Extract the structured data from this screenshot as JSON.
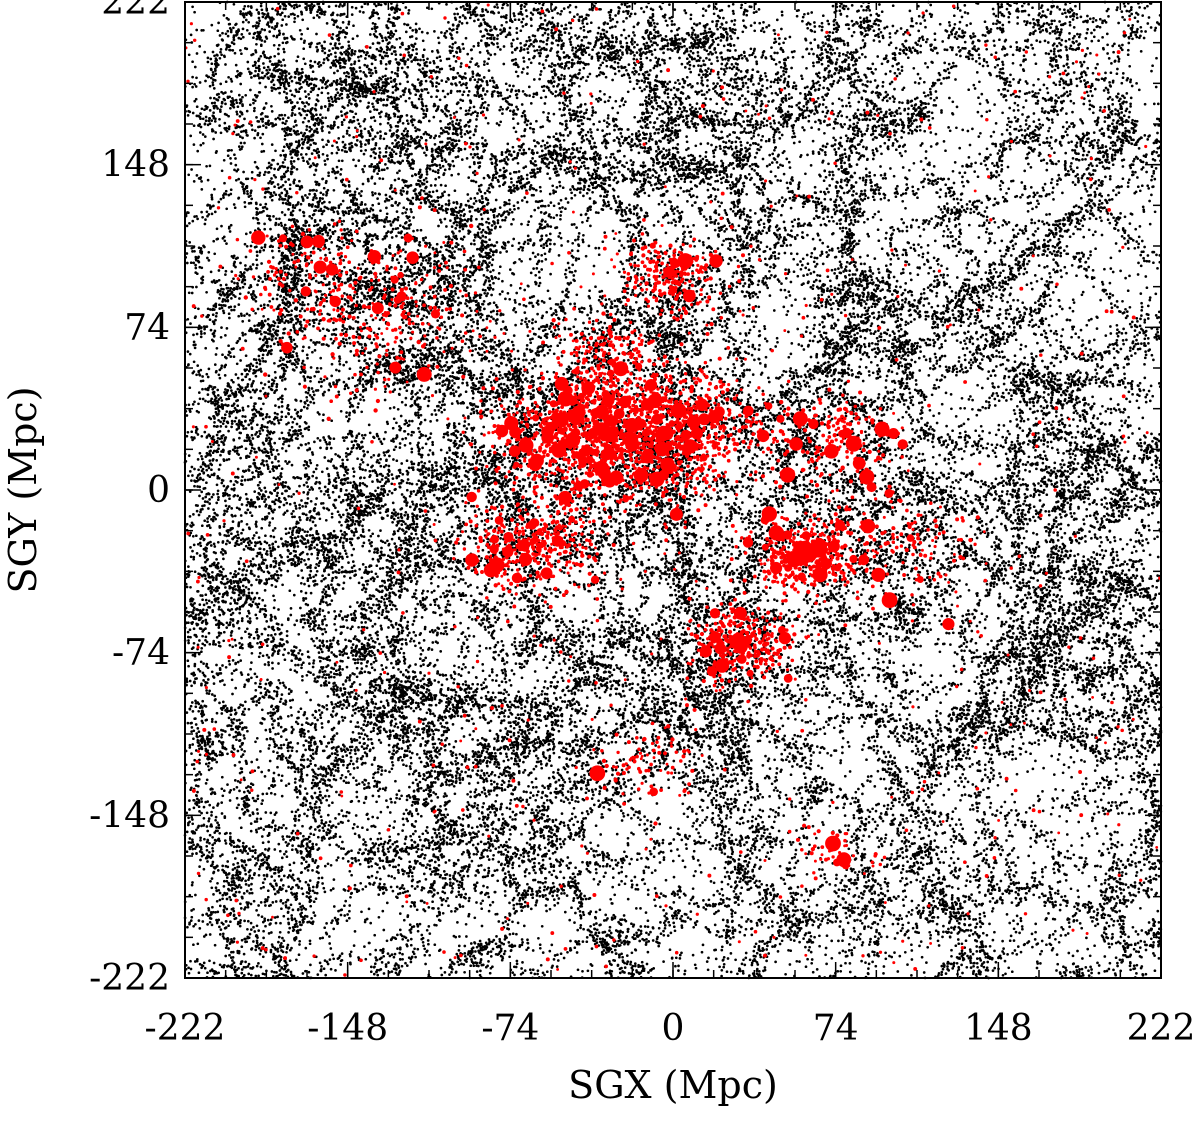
{
  "chart_data": {
    "type": "scatter",
    "title": "",
    "xlabel": "SGX (Mpc)",
    "ylabel": "SGY (Mpc)",
    "xlim": [
      -222,
      222
    ],
    "ylim": [
      -222,
      222
    ],
    "x_ticks": [
      -222,
      -148,
      -74,
      0,
      74,
      148,
      222
    ],
    "y_ticks": [
      -222,
      -148,
      -74,
      0,
      74,
      148,
      222
    ],
    "x_tick_labels": [
      "-222",
      "-148",
      "-74",
      "0",
      "74",
      "148",
      "222"
    ],
    "y_tick_labels": [
      "222",
      "148",
      "74",
      "0",
      "-74",
      "-148",
      "-222"
    ],
    "grid": false,
    "legend": "none",
    "colors": {
      "background_points": "#000000",
      "highlight_points": "#ff0000"
    },
    "series": [
      {
        "color": "#000000",
        "description_visual": "dense field of small black points forming filaments and voids across the full box",
        "approx_point_count": 40000
      },
      {
        "color": "#ff0000",
        "description_visual": "red points of varying size concentrated near the center, with clumps along filaments",
        "clusters": [
          {
            "x": -5,
            "y": 25,
            "spread": 20,
            "n": 900
          },
          {
            "x": -45,
            "y": 25,
            "spread": 18,
            "n": 600
          },
          {
            "x": -65,
            "y": -25,
            "spread": 15,
            "n": 350
          },
          {
            "x": 60,
            "y": -30,
            "spread": 12,
            "n": 350
          },
          {
            "x": 30,
            "y": -70,
            "spread": 12,
            "n": 300
          },
          {
            "x": 0,
            "y": 98,
            "spread": 12,
            "n": 220
          },
          {
            "x": -135,
            "y": 80,
            "spread": 25,
            "n": 250
          },
          {
            "x": -30,
            "y": 60,
            "spread": 15,
            "n": 180
          },
          {
            "x": 75,
            "y": 25,
            "spread": 15,
            "n": 180
          },
          {
            "x": 100,
            "y": -22,
            "spread": 20,
            "n": 150
          },
          {
            "x": -170,
            "y": 100,
            "spread": 15,
            "n": 80
          },
          {
            "x": -10,
            "y": -120,
            "spread": 12,
            "n": 80
          },
          {
            "x": 75,
            "y": -165,
            "spread": 10,
            "n": 50
          }
        ]
      }
    ]
  }
}
